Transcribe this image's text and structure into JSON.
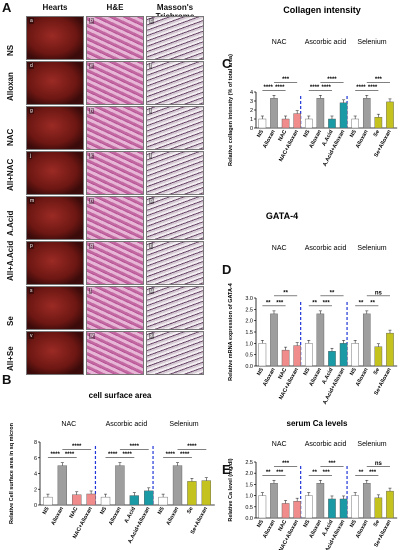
{
  "panel_letters": {
    "A": "A",
    "B": "B",
    "C": "C",
    "D": "D",
    "E": "E"
  },
  "grid": {
    "col_heads": [
      "Hearts",
      "H&E",
      "Masson's Trichrome"
    ],
    "rows": [
      {
        "label": "NS",
        "letters": [
          "a",
          "b",
          "c"
        ]
      },
      {
        "label": "Alloxan",
        "letters": [
          "d",
          "e",
          "f"
        ]
      },
      {
        "label": "NAC",
        "letters": [
          "g",
          "h",
          "i"
        ]
      },
      {
        "label": "All+NAC",
        "letters": [
          "j",
          "k",
          "l"
        ]
      },
      {
        "label": "A.Acid",
        "letters": [
          "m",
          "n",
          "o"
        ]
      },
      {
        "label": "All+A.Acid",
        "letters": [
          "p",
          "q",
          "r"
        ]
      },
      {
        "label": "Se",
        "letters": [
          "s",
          "t",
          "u"
        ]
      },
      {
        "label": "All+Se",
        "letters": [
          "v",
          "w",
          "x"
        ]
      }
    ]
  },
  "colors": {
    "grey": "#9e9e9e",
    "salmon": "#f08c8c",
    "teal": "#1a9aa5",
    "olive": "#c4c21f",
    "divider": "#1f37d8"
  },
  "chart_data": [
    {
      "id": "C",
      "type": "bar",
      "title": "Collagen intensity",
      "ylabel": "Relative collagen intensity (% of total area)",
      "ylim": [
        0,
        4
      ],
      "yticks": [
        0,
        1,
        2,
        3,
        4
      ],
      "groups": [
        "NAC",
        "Ascorbic acid",
        "Selenium"
      ],
      "categories": [
        "NS",
        "Alloxan",
        "NAC",
        "NAC+Alloxan",
        "NS",
        "Alloxan",
        "A.Acid",
        "A.Acid+Alloxan",
        "NS",
        "Alloxan",
        "Se",
        "Se+Alloxan"
      ],
      "values": [
        1.0,
        3.3,
        1.0,
        1.6,
        1.0,
        3.3,
        1.0,
        2.8,
        1.0,
        3.3,
        1.2,
        2.9
      ],
      "colors": [
        "white",
        "grey",
        "salmon",
        "salmon",
        "white",
        "grey",
        "teal",
        "teal",
        "white",
        "grey",
        "olive",
        "olive"
      ],
      "significance": [
        {
          "from": 0,
          "to": 1,
          "text": "****",
          "level": 0
        },
        {
          "from": 1,
          "to": 2,
          "text": "****",
          "level": 0
        },
        {
          "from": 1,
          "to": 3,
          "text": "***",
          "level": 1
        },
        {
          "from": 4,
          "to": 5,
          "text": "****",
          "level": 0
        },
        {
          "from": 5,
          "to": 6,
          "text": "****",
          "level": 0
        },
        {
          "from": 5,
          "to": 7,
          "text": "****",
          "level": 1
        },
        {
          "from": 8,
          "to": 9,
          "text": "****",
          "level": 0
        },
        {
          "from": 9,
          "to": 10,
          "text": "****",
          "level": 0
        },
        {
          "from": 9,
          "to": 11,
          "text": "***",
          "level": 1
        }
      ]
    },
    {
      "id": "D",
      "type": "bar",
      "title": "GATA-4",
      "ylabel": "Relative mRNA expression of GATA-4",
      "ylim": [
        0,
        3
      ],
      "yticks": [
        0.0,
        0.5,
        1.0,
        1.5,
        2.0,
        2.5,
        3.0
      ],
      "groups": [
        "NAC",
        "Ascorbic acid",
        "Selenium"
      ],
      "categories": [
        "NS",
        "Alloxan",
        "NAC",
        "NAC+Alloxan",
        "NS",
        "Alloxan",
        "A.Acid",
        "A.Acid+Alloxan",
        "NS",
        "Alloxan",
        "Se",
        "Se+Alloxan"
      ],
      "values": [
        1.0,
        2.3,
        0.7,
        0.9,
        1.0,
        2.3,
        0.65,
        1.0,
        1.0,
        2.3,
        0.85,
        1.45
      ],
      "colors": [
        "white",
        "grey",
        "salmon",
        "salmon",
        "white",
        "grey",
        "teal",
        "teal",
        "white",
        "grey",
        "olive",
        "olive"
      ],
      "significance": [
        {
          "from": 0,
          "to": 1,
          "text": "**",
          "level": 0
        },
        {
          "from": 1,
          "to": 2,
          "text": "***",
          "level": 0
        },
        {
          "from": 1,
          "to": 3,
          "text": "**",
          "level": 1
        },
        {
          "from": 4,
          "to": 5,
          "text": "**",
          "level": 0
        },
        {
          "from": 5,
          "to": 6,
          "text": "***",
          "level": 0
        },
        {
          "from": 5,
          "to": 7,
          "text": "**",
          "level": 1
        },
        {
          "from": 8,
          "to": 9,
          "text": "**",
          "level": 0
        },
        {
          "from": 9,
          "to": 10,
          "text": "**",
          "level": 0
        },
        {
          "from": 9,
          "to": 11,
          "text": "ns",
          "level": 1
        }
      ]
    },
    {
      "id": "B",
      "type": "bar",
      "title": "cell surface area",
      "ylabel": "Relative Cell surface area in sq micron",
      "ylim": [
        0,
        8
      ],
      "yticks": [
        0,
        2,
        4,
        6,
        8
      ],
      "groups": [
        "NAC",
        "Ascorbic acid",
        "Selenium"
      ],
      "categories": [
        "NS",
        "Alloxan",
        "NAC",
        "NAC+Alloxan",
        "NS",
        "Alloxan",
        "A.Acid",
        "A.Acid+Alloxan",
        "NS",
        "Alloxan",
        "Se",
        "Se+Alloxan"
      ],
      "values": [
        1.0,
        5.0,
        1.3,
        1.4,
        1.0,
        5.0,
        1.2,
        1.8,
        1.0,
        5.0,
        3.0,
        3.1
      ],
      "colors": [
        "white",
        "grey",
        "salmon",
        "salmon",
        "white",
        "grey",
        "teal",
        "teal",
        "white",
        "grey",
        "olive",
        "olive"
      ],
      "significance": [
        {
          "from": 0,
          "to": 1,
          "text": "****",
          "level": 0
        },
        {
          "from": 1,
          "to": 2,
          "text": "****",
          "level": 0
        },
        {
          "from": 1,
          "to": 3,
          "text": "****",
          "level": 1
        },
        {
          "from": 4,
          "to": 5,
          "text": "****",
          "level": 0
        },
        {
          "from": 5,
          "to": 6,
          "text": "****",
          "level": 0
        },
        {
          "from": 5,
          "to": 7,
          "text": "****",
          "level": 1
        },
        {
          "from": 8,
          "to": 9,
          "text": "****",
          "level": 0
        },
        {
          "from": 9,
          "to": 10,
          "text": "****",
          "level": 0
        },
        {
          "from": 9,
          "to": 11,
          "text": "****",
          "level": 1
        }
      ]
    },
    {
      "id": "E",
      "type": "bar",
      "title": "serum Ca levels",
      "ylabel": "Relative Ca level (mg/dl)",
      "ylim": [
        0,
        2.5
      ],
      "yticks": [
        0.0,
        0.5,
        1.0,
        1.5,
        2.0,
        2.5
      ],
      "groups": [
        "NAC",
        "Ascorbic acid",
        "Selenium"
      ],
      "categories": [
        "NS",
        "Alloxan",
        "NAC",
        "NAC+Alloxan",
        "NS",
        "Alloxan",
        "A.Acid",
        "A.Acid+Alloxan",
        "NS",
        "Alloxan",
        "Se",
        "Se+Alloxan"
      ],
      "values": [
        1.0,
        1.55,
        0.65,
        0.75,
        1.0,
        1.55,
        0.85,
        0.85,
        1.0,
        1.55,
        0.9,
        1.2
      ],
      "colors": [
        "white",
        "grey",
        "salmon",
        "salmon",
        "white",
        "grey",
        "teal",
        "teal",
        "white",
        "grey",
        "olive",
        "olive"
      ],
      "significance": [
        {
          "from": 0,
          "to": 1,
          "text": "**",
          "level": 0
        },
        {
          "from": 1,
          "to": 2,
          "text": "***",
          "level": 0
        },
        {
          "from": 1,
          "to": 3,
          "text": "***",
          "level": 1
        },
        {
          "from": 4,
          "to": 5,
          "text": "**",
          "level": 0
        },
        {
          "from": 5,
          "to": 6,
          "text": "***",
          "level": 0
        },
        {
          "from": 5,
          "to": 7,
          "text": "***",
          "level": 1
        },
        {
          "from": 8,
          "to": 9,
          "text": "**",
          "level": 0
        },
        {
          "from": 9,
          "to": 10,
          "text": "***",
          "level": 0
        },
        {
          "from": 9,
          "to": 11,
          "text": "ns",
          "level": 1
        }
      ]
    }
  ]
}
